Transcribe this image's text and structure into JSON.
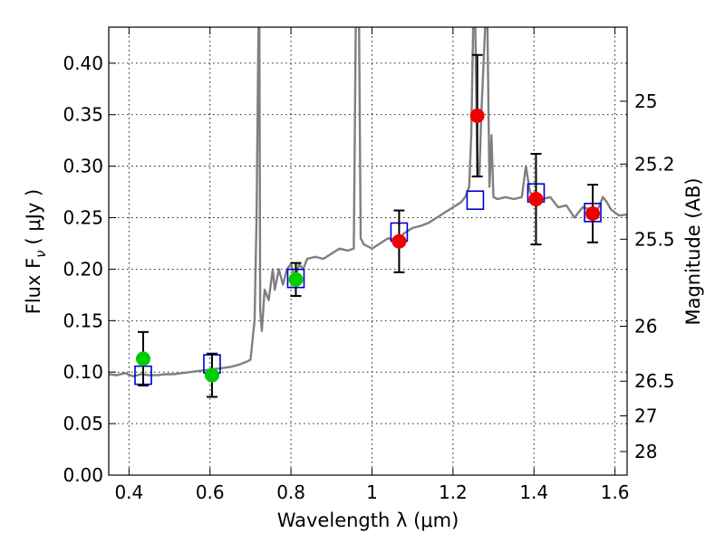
{
  "chart_data": {
    "type": "scatter",
    "xlabel": "Wavelength  λ (μm)",
    "ylabel": "Flux  F",
    "ylabel_sub": "ν",
    "ylabel_unit": "( μJy )",
    "ylabel_right": "Magnitude (AB)",
    "xlim": [
      0.35,
      1.63
    ],
    "ylim": [
      0.0,
      0.435
    ],
    "grid": true,
    "x_ticks": [
      {
        "value": 0.4,
        "label": "0.4"
      },
      {
        "value": 0.6,
        "label": "0.6"
      },
      {
        "value": 0.8,
        "label": "0.8"
      },
      {
        "value": 1.0,
        "label": "1"
      },
      {
        "value": 1.2,
        "label": "1.2"
      },
      {
        "value": 1.4,
        "label": "1.4"
      },
      {
        "value": 1.6,
        "label": "1.6"
      }
    ],
    "y_ticks": [
      {
        "value": 0.0,
        "label": "0.00"
      },
      {
        "value": 0.05,
        "label": "0.05"
      },
      {
        "value": 0.1,
        "label": "0.10"
      },
      {
        "value": 0.15,
        "label": "0.15"
      },
      {
        "value": 0.2,
        "label": "0.20"
      },
      {
        "value": 0.25,
        "label": "0.25"
      },
      {
        "value": 0.3,
        "label": "0.30"
      },
      {
        "value": 0.35,
        "label": "0.35"
      },
      {
        "value": 0.4,
        "label": "0.40"
      }
    ],
    "right_ticks": [
      {
        "mag": 25.0,
        "label": "25"
      },
      {
        "mag": 25.2,
        "label": "25.2"
      },
      {
        "mag": 25.5,
        "label": "25.5"
      },
      {
        "mag": 26.0,
        "label": "26"
      },
      {
        "mag": 26.5,
        "label": "26.5"
      },
      {
        "mag": 27.0,
        "label": "27"
      },
      {
        "mag": 28.0,
        "label": "28"
      }
    ],
    "series": [
      {
        "kind": "spectrum",
        "color": "#7f7f7f",
        "x": [
          0.35,
          0.37,
          0.39,
          0.41,
          0.43,
          0.45,
          0.47,
          0.49,
          0.51,
          0.53,
          0.55,
          0.57,
          0.59,
          0.61,
          0.63,
          0.65,
          0.67,
          0.69,
          0.7,
          0.71,
          0.715,
          0.72,
          0.722,
          0.724,
          0.728,
          0.735,
          0.745,
          0.755,
          0.76,
          0.77,
          0.78,
          0.79,
          0.8,
          0.81,
          0.82,
          0.83,
          0.84,
          0.86,
          0.88,
          0.9,
          0.92,
          0.94,
          0.955,
          0.96,
          0.962,
          0.965,
          0.968,
          0.972,
          0.98,
          1.0,
          1.02,
          1.04,
          1.06,
          1.08,
          1.1,
          1.12,
          1.14,
          1.16,
          1.18,
          1.2,
          1.22,
          1.23,
          1.24,
          1.245,
          1.25,
          1.255,
          1.26,
          1.265,
          1.27,
          1.28,
          1.285,
          1.29,
          1.295,
          1.3,
          1.31,
          1.33,
          1.35,
          1.37,
          1.38,
          1.39,
          1.4,
          1.42,
          1.44,
          1.46,
          1.48,
          1.5,
          1.52,
          1.54,
          1.55,
          1.56,
          1.57,
          1.58,
          1.59,
          1.6,
          1.61,
          1.63
        ],
        "y": [
          0.098,
          0.097,
          0.099,
          0.096,
          0.098,
          0.097,
          0.097,
          0.098,
          0.098,
          0.099,
          0.1,
          0.101,
          0.102,
          0.103,
          0.104,
          0.105,
          0.107,
          0.11,
          0.112,
          0.15,
          0.25,
          0.44,
          0.44,
          0.16,
          0.14,
          0.18,
          0.17,
          0.2,
          0.18,
          0.2,
          0.185,
          0.2,
          0.205,
          0.19,
          0.205,
          0.2,
          0.21,
          0.212,
          0.21,
          0.215,
          0.22,
          0.218,
          0.22,
          0.44,
          0.44,
          0.44,
          0.44,
          0.23,
          0.224,
          0.22,
          0.225,
          0.23,
          0.228,
          0.235,
          0.24,
          0.242,
          0.245,
          0.25,
          0.255,
          0.26,
          0.265,
          0.27,
          0.28,
          0.33,
          0.44,
          0.44,
          0.3,
          0.29,
          0.35,
          0.44,
          0.44,
          0.28,
          0.33,
          0.27,
          0.268,
          0.27,
          0.268,
          0.27,
          0.3,
          0.275,
          0.27,
          0.268,
          0.27,
          0.26,
          0.262,
          0.25,
          0.26,
          0.258,
          0.255,
          0.26,
          0.27,
          0.265,
          0.258,
          0.255,
          0.252,
          0.253
        ]
      },
      {
        "kind": "model_photometry",
        "marker": "open-square",
        "color": "#0000cc",
        "x": [
          0.435,
          0.605,
          0.812,
          1.067,
          1.255,
          1.405,
          1.545
        ],
        "y": [
          0.097,
          0.108,
          0.191,
          0.236,
          0.267,
          0.274,
          0.255
        ]
      },
      {
        "kind": "observed_optical",
        "marker": "filled-circle",
        "color": "#00cc00",
        "x": [
          0.435,
          0.605,
          0.812
        ],
        "y": [
          0.113,
          0.097,
          0.19
        ],
        "yerr": [
          0.026,
          0.021,
          0.016
        ]
      },
      {
        "kind": "observed_nir",
        "marker": "filled-circle",
        "color": "#ee0000",
        "x": [
          1.067,
          1.26,
          1.405,
          1.545
        ],
        "y": [
          0.227,
          0.349,
          0.268,
          0.254
        ],
        "yerr": [
          0.03,
          0.059,
          0.044,
          0.028
        ]
      }
    ]
  }
}
